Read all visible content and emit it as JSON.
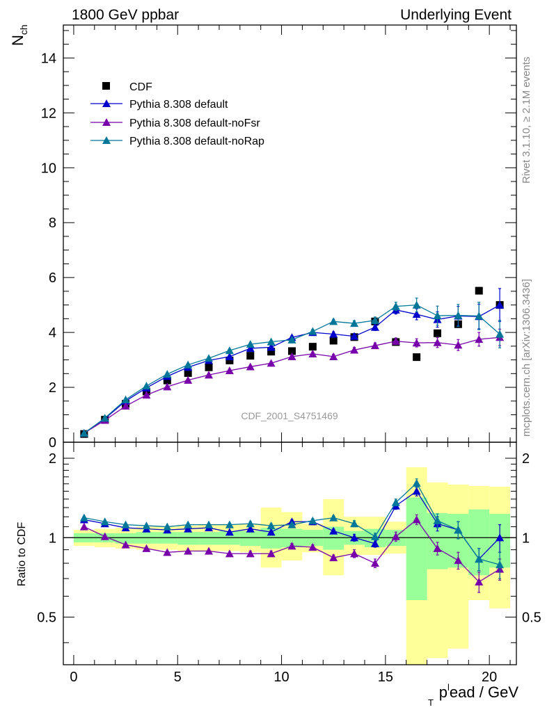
{
  "header": {
    "left": "1800 GeV ppbar",
    "right": "Underlying Event"
  },
  "side": {
    "rivet": "Rivet 3.1.10, ≥ 2.1M events",
    "mcplots": "mcplots.cern.ch [arXiv:1306.3436]"
  },
  "analysis_id": "CDF_2001_S4751469",
  "axes": {
    "ylabel_main": "N",
    "ylabel_main_sub": "ch",
    "ylabel_ratio": "Ratio to CDF",
    "xlabel_p": "p",
    "xlabel_sup": "l",
    "xlabel_sub": "T",
    "xlabel_rest": "ead / GeV",
    "ylabel_main_sub_note": "ch"
  },
  "legend": {
    "cdf": "CDF",
    "default": "Pythia 8.308 default",
    "nofsr": "Pythia 8.308 default-noFsr",
    "norap": "Pythia 8.308 default-noRap"
  },
  "colors": {
    "data": "#000000",
    "default": "#0000cc",
    "nofsr": "#7700aa",
    "norap": "#007799",
    "band_inner": "#99ff99",
    "band_outer": "#ffff99"
  },
  "chart_data": [
    {
      "type": "scatter",
      "x": [
        0.5,
        1.5,
        2.5,
        3.5,
        4.5,
        5.5,
        6.5,
        7.5,
        8.5,
        9.5,
        10.5,
        11.5,
        12.5,
        13.5,
        14.5,
        15.5,
        16.5,
        17.5,
        18.5,
        19.5,
        20.5
      ],
      "xlim": [
        -0.5,
        21.3
      ],
      "ylim": [
        0,
        15.2
      ],
      "xticks": [
        0,
        5,
        10,
        15,
        20
      ],
      "yticks": [
        0,
        2,
        4,
        6,
        8,
        10,
        12,
        14
      ],
      "series": [
        {
          "name": "CDF",
          "values": [
            0.3,
            0.82,
            1.4,
            1.85,
            2.25,
            2.52,
            2.73,
            2.98,
            3.15,
            3.3,
            3.32,
            3.48,
            3.7,
            3.83,
            4.4,
            3.65,
            3.1,
            3.97,
            4.3,
            5.52,
            5.0
          ]
        },
        {
          "name": "Pythia 8.308 default",
          "values": [
            0.33,
            0.86,
            1.5,
            1.98,
            2.4,
            2.73,
            2.98,
            3.12,
            3.42,
            3.46,
            3.82,
            4.0,
            3.94,
            3.86,
            4.19,
            4.82,
            4.66,
            4.47,
            4.6,
            4.58,
            5.0
          ],
          "errors": [
            0.01,
            0.01,
            0.01,
            0.02,
            0.02,
            0.03,
            0.03,
            0.04,
            0.05,
            0.05,
            0.06,
            0.07,
            0.08,
            0.1,
            0.12,
            0.15,
            0.2,
            0.28,
            0.35,
            0.45,
            0.6
          ]
        },
        {
          "name": "Pythia 8.308 default-noFsr",
          "values": [
            0.33,
            0.8,
            1.32,
            1.72,
            2.02,
            2.26,
            2.45,
            2.61,
            2.75,
            2.88,
            3.12,
            3.22,
            3.12,
            3.36,
            3.52,
            3.68,
            3.62,
            3.63,
            3.54,
            3.75,
            3.82
          ],
          "errors": [
            0.01,
            0.01,
            0.01,
            0.02,
            0.02,
            0.03,
            0.03,
            0.04,
            0.05,
            0.05,
            0.06,
            0.07,
            0.08,
            0.09,
            0.1,
            0.12,
            0.15,
            0.18,
            0.2,
            0.25,
            0.3
          ]
        },
        {
          "name": "Pythia 8.308 default-noRap",
          "values": [
            0.33,
            0.88,
            1.55,
            2.05,
            2.48,
            2.82,
            3.06,
            3.34,
            3.57,
            3.66,
            3.73,
            4.04,
            4.4,
            4.33,
            4.44,
            4.95,
            5.0,
            4.61,
            4.62,
            4.6,
            3.94
          ],
          "errors": [
            0.01,
            0.01,
            0.01,
            0.02,
            0.02,
            0.03,
            0.03,
            0.04,
            0.05,
            0.05,
            0.06,
            0.07,
            0.08,
            0.1,
            0.12,
            0.15,
            0.25,
            0.35,
            0.4,
            0.5,
            0.5
          ]
        }
      ]
    },
    {
      "type": "scatter",
      "x": [
        0.5,
        1.5,
        2.5,
        3.5,
        4.5,
        5.5,
        6.5,
        7.5,
        8.5,
        9.5,
        10.5,
        11.5,
        12.5,
        13.5,
        14.5,
        15.5,
        16.5,
        17.5,
        18.5,
        19.5,
        20.5
      ],
      "xlim": [
        -0.5,
        21.3
      ],
      "ylim": [
        0.33,
        2.3
      ],
      "yscale": "log",
      "yticks": [
        0.5,
        1,
        2
      ],
      "bands": {
        "inner": [
          [
            0.96,
            1.04
          ],
          [
            0.96,
            1.04
          ],
          [
            0.95,
            1.04
          ],
          [
            0.95,
            1.05
          ],
          [
            0.95,
            1.05
          ],
          [
            0.94,
            1.05
          ],
          [
            0.94,
            1.05
          ],
          [
            0.94,
            1.06
          ],
          [
            0.93,
            1.06
          ],
          [
            0.91,
            1.09
          ],
          [
            0.92,
            1.08
          ],
          [
            0.93,
            1.07
          ],
          [
            0.9,
            1.1
          ],
          [
            0.94,
            1.06
          ],
          [
            0.92,
            1.08
          ],
          [
            0.93,
            1.07
          ],
          [
            0.58,
            1.42
          ],
          [
            0.76,
            1.24
          ],
          [
            0.77,
            1.23
          ],
          [
            0.72,
            1.28
          ],
          [
            0.77,
            1.23
          ]
        ],
        "outer": [
          [
            0.93,
            1.07
          ],
          [
            0.92,
            1.08
          ],
          [
            0.91,
            1.09
          ],
          [
            0.9,
            1.1
          ],
          [
            0.9,
            1.1
          ],
          [
            0.89,
            1.11
          ],
          [
            0.89,
            1.12
          ],
          [
            0.89,
            1.12
          ],
          [
            0.88,
            1.13
          ],
          [
            0.77,
            1.3
          ],
          [
            0.82,
            1.25
          ],
          [
            0.88,
            1.13
          ],
          [
            0.72,
            1.4
          ],
          [
            0.86,
            1.2
          ],
          [
            0.86,
            1.2
          ],
          [
            0.87,
            1.15
          ],
          [
            0.33,
            1.85
          ],
          [
            0.35,
            1.62
          ],
          [
            0.38,
            1.59
          ],
          [
            0.58,
            1.57
          ],
          [
            0.54,
            1.56
          ]
        ]
      },
      "series": [
        {
          "name": "Pythia 8.308 default",
          "values": [
            1.17,
            1.13,
            1.09,
            1.08,
            1.07,
            1.08,
            1.09,
            1.05,
            1.08,
            1.05,
            1.15,
            1.15,
            1.06,
            1.0,
            0.95,
            1.32,
            1.5,
            1.13,
            1.07,
            0.83,
            1.0
          ],
          "errors": [
            0.01,
            0.01,
            0.01,
            0.01,
            0.01,
            0.01,
            0.01,
            0.01,
            0.02,
            0.02,
            0.02,
            0.02,
            0.02,
            0.03,
            0.03,
            0.04,
            0.06,
            0.07,
            0.08,
            0.08,
            0.12
          ]
        },
        {
          "name": "Pythia 8.308 default-noFsr",
          "values": [
            1.1,
            1.01,
            0.94,
            0.91,
            0.88,
            0.89,
            0.89,
            0.87,
            0.87,
            0.87,
            0.93,
            0.92,
            0.84,
            0.87,
            0.8,
            1.01,
            1.17,
            0.91,
            0.82,
            0.68,
            0.76
          ],
          "errors": [
            0.01,
            0.01,
            0.01,
            0.01,
            0.01,
            0.01,
            0.01,
            0.01,
            0.02,
            0.02,
            0.02,
            0.02,
            0.02,
            0.03,
            0.03,
            0.04,
            0.05,
            0.05,
            0.06,
            0.06,
            0.07
          ]
        },
        {
          "name": "Pythia 8.308 default-noRap",
          "values": [
            1.19,
            1.15,
            1.12,
            1.11,
            1.1,
            1.12,
            1.12,
            1.12,
            1.13,
            1.11,
            1.12,
            1.16,
            1.19,
            1.13,
            1.01,
            1.36,
            1.61,
            1.16,
            1.07,
            0.83,
            0.79
          ],
          "errors": [
            0.01,
            0.01,
            0.01,
            0.01,
            0.01,
            0.01,
            0.01,
            0.01,
            0.02,
            0.02,
            0.02,
            0.02,
            0.02,
            0.03,
            0.03,
            0.04,
            0.06,
            0.07,
            0.08,
            0.08,
            0.09
          ]
        }
      ]
    }
  ]
}
